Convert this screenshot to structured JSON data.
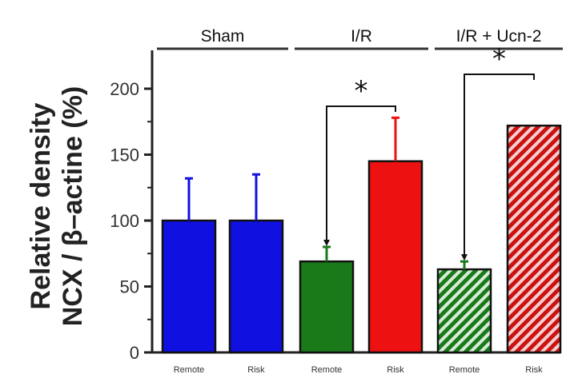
{
  "chart_data": {
    "type": "bar",
    "ylabel_line1": "Relative density",
    "ylabel_line2": "NCX / β–actine (%)",
    "ylim": [
      0,
      200
    ],
    "yticks": [
      "0",
      "50",
      "100",
      "150",
      "200"
    ],
    "groups": [
      "Sham",
      "I/R",
      "I/R + Ucn-2"
    ],
    "categories": [
      "Remote",
      "Risk",
      "Remote",
      "Risk",
      "Remote",
      "Risk"
    ],
    "values": [
      100,
      100,
      69,
      145,
      63,
      172
    ],
    "errors": [
      32,
      35,
      11,
      33,
      6,
      0
    ],
    "bar_colors": [
      "#1010e0",
      "#1010e0",
      "#1a7a1a",
      "#ee1111",
      "#1a7a1a",
      "#cc1111"
    ],
    "bar_hatched": [
      false,
      false,
      false,
      false,
      true,
      true
    ],
    "significance": [
      {
        "from": 2,
        "to": 3,
        "label": "*"
      },
      {
        "from": 4,
        "to": 5,
        "label": "*"
      }
    ]
  }
}
